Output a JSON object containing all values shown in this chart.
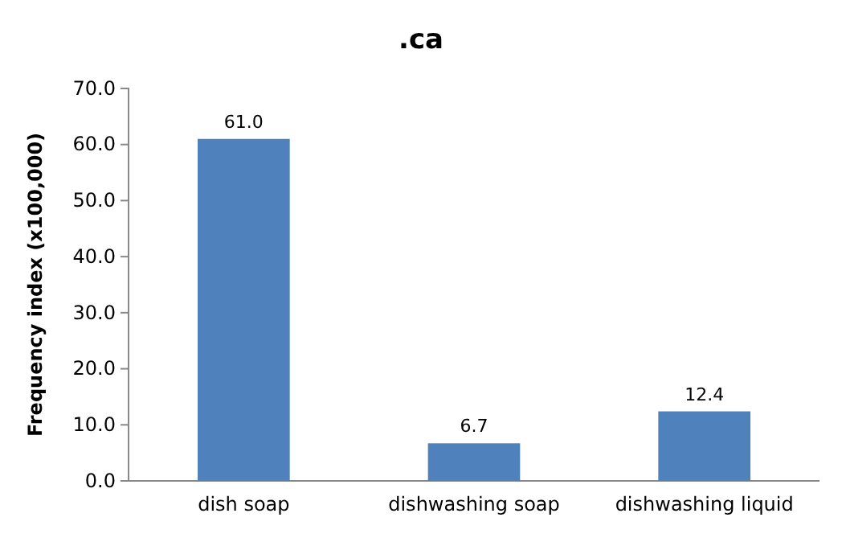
{
  "chart_data": {
    "type": "bar",
    "title": ".ca",
    "ylabel": "Frequency index (x100,000)",
    "categories": [
      "dish soap",
      "dishwashing soap",
      "dishwashing liquid"
    ],
    "values": [
      61.0,
      6.7,
      12.4
    ],
    "color": "#4f81bd",
    "ylim": [
      0,
      70
    ],
    "yticks": [
      {
        "value": 0,
        "label": "0.0"
      },
      {
        "value": 10,
        "label": "10.0"
      },
      {
        "value": 20,
        "label": "20.0"
      },
      {
        "value": 30,
        "label": "30.0"
      },
      {
        "value": 40,
        "label": "40.0"
      },
      {
        "value": 50,
        "label": "50.0"
      },
      {
        "value": 60,
        "label": "60.0"
      },
      {
        "value": 70,
        "label": "70.0"
      }
    ],
    "value_labels": [
      "61.0",
      "6.7",
      "12.4"
    ],
    "grid": false
  }
}
